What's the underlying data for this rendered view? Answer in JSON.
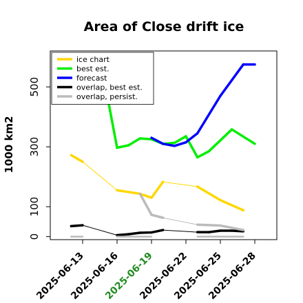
{
  "chart_data": {
    "type": "line",
    "title": "Area of Close drift ice",
    "xlabel": "",
    "ylabel": "1000 km2",
    "xlim": [
      "2025-06-12",
      "2025-06-29"
    ],
    "ylim": [
      -10,
      620
    ],
    "yticks": [
      0,
      100,
      300,
      500
    ],
    "xticks": [
      {
        "label": "2025-06-13",
        "color": "#000000"
      },
      {
        "label": "2025-06-16",
        "color": "#000000"
      },
      {
        "label": "2025-06-19",
        "color": "#228B22"
      },
      {
        "label": "2025-06-22",
        "color": "#000000"
      },
      {
        "label": "2025-06-25",
        "color": "#000000"
      },
      {
        "label": "2025-06-28",
        "color": "#000000"
      }
    ],
    "grid": false,
    "legend_position": "top-left",
    "series": [
      {
        "name": "ice chart",
        "color": "#FFD700",
        "points": [
          {
            "x": "2025-06-12",
            "y": 272,
            "w": 3.5
          },
          {
            "x": "2025-06-13",
            "y": 250,
            "w": 1
          },
          {
            "x": "2025-06-16",
            "y": 155,
            "w": 3.5
          },
          {
            "x": "2025-06-18",
            "y": 143,
            "w": 3.5
          },
          {
            "x": "2025-06-19",
            "y": 130,
            "w": 3.5
          },
          {
            "x": "2025-06-20",
            "y": 183,
            "w": 1
          },
          {
            "x": "2025-06-23",
            "y": 167,
            "w": 3.5
          },
          {
            "x": "2025-06-25",
            "y": 122,
            "w": 3.5
          },
          {
            "x": "2025-06-27",
            "y": 88,
            "w": 3.5
          }
        ]
      },
      {
        "name": "best est.",
        "color": "#00EE00",
        "points": [
          {
            "x": "2025-06-15",
            "y": 500,
            "w": 3.5
          },
          {
            "x": "2025-06-16",
            "y": 297,
            "w": 3.5
          },
          {
            "x": "2025-06-17",
            "y": 305,
            "w": 3.5
          },
          {
            "x": "2025-06-18",
            "y": 328,
            "w": 3.5
          },
          {
            "x": "2025-06-19",
            "y": 325,
            "w": 3.5
          },
          {
            "x": "2025-06-20",
            "y": 310,
            "w": 3.5
          },
          {
            "x": "2025-06-21",
            "y": 313,
            "w": 3.5
          },
          {
            "x": "2025-06-22",
            "y": 335,
            "w": 3.5
          },
          {
            "x": "2025-06-23",
            "y": 265,
            "w": 3.5
          },
          {
            "x": "2025-06-24",
            "y": 285,
            "w": 3.5
          },
          {
            "x": "2025-06-26",
            "y": 358,
            "w": 3.5
          },
          {
            "x": "2025-06-28",
            "y": 310,
            "w": 3.5
          }
        ]
      },
      {
        "name": "forecast",
        "color": "#0000FF",
        "points": [
          {
            "x": "2025-06-19",
            "y": 330,
            "w": 3.5
          },
          {
            "x": "2025-06-20",
            "y": 310,
            "w": 3.5
          },
          {
            "x": "2025-06-21",
            "y": 303,
            "w": 3.5
          },
          {
            "x": "2025-06-22",
            "y": 315,
            "w": 3.5
          },
          {
            "x": "2025-06-23",
            "y": 345,
            "w": 3.5
          },
          {
            "x": "2025-06-25",
            "y": 470,
            "w": 3.5
          },
          {
            "x": "2025-06-27",
            "y": 575,
            "w": 3.5
          },
          {
            "x": "2025-06-28",
            "y": 575,
            "w": 3.5
          }
        ]
      },
      {
        "name": "overlap, best est.",
        "color": "#000000",
        "points": [
          {
            "x": "2025-06-12",
            "y": 35,
            "w": 3.5
          },
          {
            "x": "2025-06-13",
            "y": 38,
            "w": 1
          },
          {
            "x": "2025-06-16",
            "y": 5,
            "w": 3.5
          },
          {
            "x": "2025-06-17",
            "y": 8,
            "w": 3.5
          },
          {
            "x": "2025-06-18",
            "y": 13,
            "w": 3.5
          },
          {
            "x": "2025-06-19",
            "y": 14,
            "w": 3.5
          },
          {
            "x": "2025-06-20",
            "y": 22,
            "w": 1
          },
          {
            "x": "2025-06-23",
            "y": 15,
            "w": 3.5
          },
          {
            "x": "2025-06-24",
            "y": 15,
            "w": 3.5
          },
          {
            "x": "2025-06-25",
            "y": 20,
            "w": 3.5
          },
          {
            "x": "2025-06-26",
            "y": 20,
            "w": 3.5
          },
          {
            "x": "2025-06-27",
            "y": 18,
            "w": 3.5
          }
        ]
      },
      {
        "name": "overlap, persist.",
        "color": "#BBBBBB",
        "points": [
          {
            "x": "2025-06-18",
            "y": 143,
            "w": 3.5
          },
          {
            "x": "2025-06-19",
            "y": 73,
            "w": 3.5
          },
          {
            "x": "2025-06-20",
            "y": 63,
            "w": 1
          },
          {
            "x": "2025-06-23",
            "y": 40,
            "w": 3.5
          },
          {
            "x": "2025-06-25",
            "y": 37,
            "w": 3.5
          },
          {
            "x": "2025-06-27",
            "y": 22,
            "w": 3.5
          }
        ]
      },
      {
        "name": "",
        "color": "#BBBBBB",
        "points": [
          {
            "x": "2025-06-12",
            "y": 0,
            "w": 2.5
          },
          {
            "x": "2025-06-13",
            "y": 0,
            "w": 2.5
          }
        ]
      },
      {
        "name": "",
        "color": "#BBBBBB",
        "points": [
          {
            "x": "2025-06-16",
            "y": 0,
            "w": 2.5
          },
          {
            "x": "2025-06-19",
            "y": 0,
            "w": 2.5
          }
        ]
      },
      {
        "name": "",
        "color": "#BBBBBB",
        "points": [
          {
            "x": "2025-06-23",
            "y": 0,
            "w": 2.5
          },
          {
            "x": "2025-06-27",
            "y": 0,
            "w": 2.5
          }
        ]
      }
    ]
  }
}
